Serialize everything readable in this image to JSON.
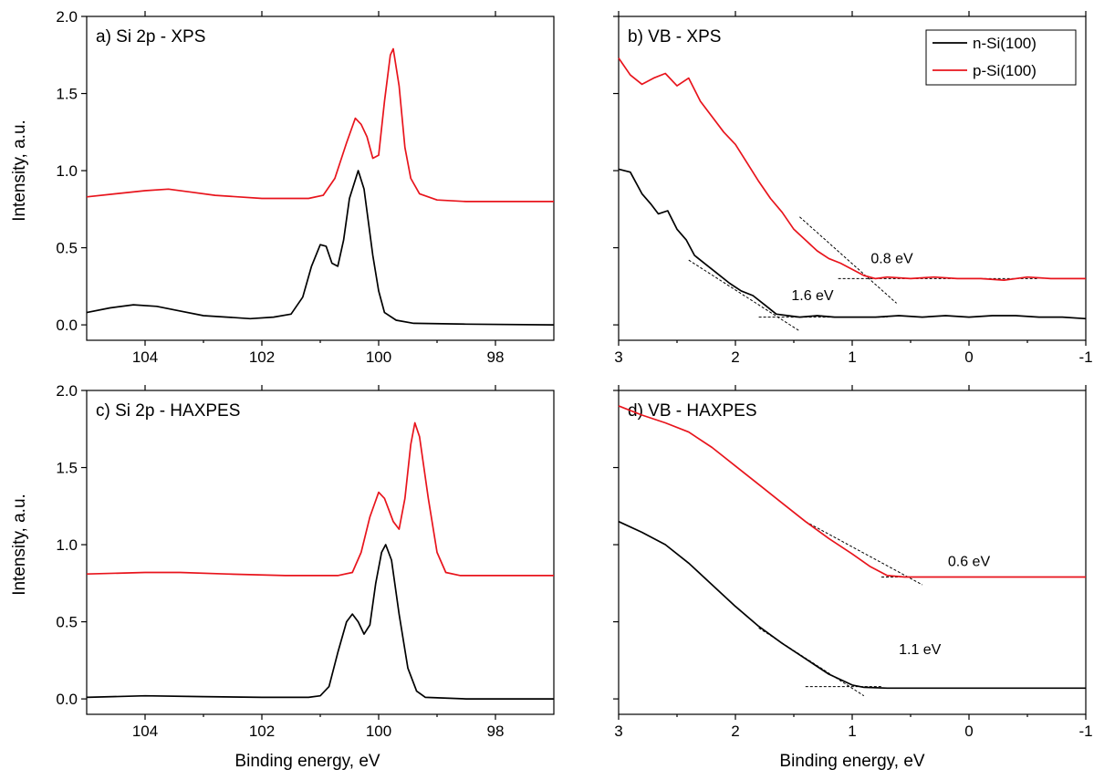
{
  "figure": {
    "y_label": "Intensity, a.u.",
    "x_label": "Binding energy, eV"
  },
  "legend": {
    "entries": [
      {
        "name": "n-Si(100)",
        "color": "#000000"
      },
      {
        "name": "p-Si(100)",
        "color": "#e8141c"
      }
    ]
  },
  "chart_data": [
    {
      "id": "a",
      "type": "line",
      "title": "a) Si 2p - XPS",
      "xlabel": "",
      "ylabel": "Intensity, a.u.",
      "xlim": [
        105,
        97
      ],
      "ylim": [
        -0.1,
        2.0
      ],
      "xticks": [
        104,
        102,
        100,
        98
      ],
      "yticks": [
        0.0,
        0.5,
        1.0,
        1.5,
        2.0
      ],
      "ytick_labels": [
        "0.0",
        "0.5",
        "1.0",
        "1.5",
        "2.0"
      ],
      "series": [
        {
          "name": "n-Si(100)",
          "color": "#000000",
          "points": [
            [
              105,
              0.08
            ],
            [
              104.6,
              0.11
            ],
            [
              104.2,
              0.13
            ],
            [
              103.8,
              0.12
            ],
            [
              103.4,
              0.09
            ],
            [
              103.0,
              0.06
            ],
            [
              102.6,
              0.05
            ],
            [
              102.2,
              0.04
            ],
            [
              101.8,
              0.05
            ],
            [
              101.5,
              0.07
            ],
            [
              101.3,
              0.18
            ],
            [
              101.15,
              0.38
            ],
            [
              101.0,
              0.52
            ],
            [
              100.9,
              0.51
            ],
            [
              100.8,
              0.4
            ],
            [
              100.7,
              0.38
            ],
            [
              100.6,
              0.55
            ],
            [
              100.5,
              0.82
            ],
            [
              100.35,
              1.0
            ],
            [
              100.25,
              0.88
            ],
            [
              100.1,
              0.45
            ],
            [
              100.0,
              0.22
            ],
            [
              99.9,
              0.08
            ],
            [
              99.7,
              0.03
            ],
            [
              99.4,
              0.01
            ],
            [
              98.5,
              0.005
            ],
            [
              97,
              0.0
            ]
          ]
        },
        {
          "name": "p-Si(100)",
          "color": "#e8141c",
          "points": [
            [
              105,
              0.83
            ],
            [
              104.5,
              0.85
            ],
            [
              104.0,
              0.87
            ],
            [
              103.6,
              0.88
            ],
            [
              103.2,
              0.86
            ],
            [
              102.8,
              0.84
            ],
            [
              102.4,
              0.83
            ],
            [
              102.0,
              0.82
            ],
            [
              101.6,
              0.82
            ],
            [
              101.2,
              0.82
            ],
            [
              100.95,
              0.84
            ],
            [
              100.75,
              0.95
            ],
            [
              100.55,
              1.18
            ],
            [
              100.4,
              1.34
            ],
            [
              100.3,
              1.3
            ],
            [
              100.2,
              1.22
            ],
            [
              100.1,
              1.08
            ],
            [
              100.0,
              1.1
            ],
            [
              99.9,
              1.45
            ],
            [
              99.8,
              1.75
            ],
            [
              99.75,
              1.79
            ],
            [
              99.65,
              1.55
            ],
            [
              99.55,
              1.15
            ],
            [
              99.45,
              0.95
            ],
            [
              99.3,
              0.85
            ],
            [
              99.0,
              0.81
            ],
            [
              98.5,
              0.8
            ],
            [
              97,
              0.8
            ]
          ]
        }
      ],
      "annotations": []
    },
    {
      "id": "b",
      "type": "line",
      "title": "b) VB - XPS",
      "xlabel": "",
      "ylabel": "",
      "xlim": [
        3,
        -1
      ],
      "ylim": [
        -0.1,
        2.0
      ],
      "xticks": [
        3,
        2,
        1,
        0,
        -1
      ],
      "yticks": [
        0.0,
        0.5,
        1.0,
        1.5,
        2.0
      ],
      "ytick_labels": [],
      "series": [
        {
          "name": "n-Si(100)",
          "color": "#000000",
          "points": [
            [
              3.0,
              1.01
            ],
            [
              2.9,
              0.99
            ],
            [
              2.8,
              0.85
            ],
            [
              2.72,
              0.78
            ],
            [
              2.66,
              0.72
            ],
            [
              2.58,
              0.74
            ],
            [
              2.5,
              0.62
            ],
            [
              2.42,
              0.55
            ],
            [
              2.35,
              0.45
            ],
            [
              2.25,
              0.39
            ],
            [
              2.15,
              0.33
            ],
            [
              2.05,
              0.27
            ],
            [
              1.95,
              0.22
            ],
            [
              1.85,
              0.19
            ],
            [
              1.75,
              0.13
            ],
            [
              1.65,
              0.07
            ],
            [
              1.55,
              0.06
            ],
            [
              1.45,
              0.05
            ],
            [
              1.3,
              0.06
            ],
            [
              1.15,
              0.05
            ],
            [
              1.0,
              0.05
            ],
            [
              0.8,
              0.05
            ],
            [
              0.6,
              0.06
            ],
            [
              0.4,
              0.05
            ],
            [
              0.2,
              0.06
            ],
            [
              0.0,
              0.05
            ],
            [
              -0.2,
              0.06
            ],
            [
              -0.4,
              0.06
            ],
            [
              -0.6,
              0.05
            ],
            [
              -0.8,
              0.05
            ],
            [
              -1.0,
              0.04
            ]
          ]
        },
        {
          "name": "p-Si(100)",
          "color": "#e8141c",
          "points": [
            [
              3.0,
              1.73
            ],
            [
              2.9,
              1.62
            ],
            [
              2.8,
              1.56
            ],
            [
              2.7,
              1.6
            ],
            [
              2.6,
              1.63
            ],
            [
              2.5,
              1.55
            ],
            [
              2.4,
              1.6
            ],
            [
              2.3,
              1.45
            ],
            [
              2.2,
              1.35
            ],
            [
              2.1,
              1.25
            ],
            [
              2.0,
              1.17
            ],
            [
              1.9,
              1.05
            ],
            [
              1.8,
              0.93
            ],
            [
              1.7,
              0.82
            ],
            [
              1.6,
              0.73
            ],
            [
              1.5,
              0.62
            ],
            [
              1.4,
              0.55
            ],
            [
              1.3,
              0.48
            ],
            [
              1.2,
              0.43
            ],
            [
              1.1,
              0.4
            ],
            [
              1.0,
              0.36
            ],
            [
              0.9,
              0.32
            ],
            [
              0.8,
              0.3
            ],
            [
              0.7,
              0.31
            ],
            [
              0.5,
              0.3
            ],
            [
              0.3,
              0.31
            ],
            [
              0.1,
              0.3
            ],
            [
              -0.1,
              0.3
            ],
            [
              -0.3,
              0.29
            ],
            [
              -0.5,
              0.31
            ],
            [
              -0.7,
              0.3
            ],
            [
              -0.9,
              0.3
            ],
            [
              -1.0,
              0.3
            ]
          ]
        }
      ],
      "annotations": [
        {
          "text": "0.8 eV",
          "x": 0.66,
          "y": 0.4
        },
        {
          "text": "1.6 eV",
          "x": 1.34,
          "y": 0.16
        }
      ],
      "guides": [
        {
          "x1": 1.45,
          "y1": 0.7,
          "x2": 0.62,
          "y2": 0.14
        },
        {
          "x1": 1.12,
          "y1": 0.3,
          "x2": -0.6,
          "y2": 0.3
        },
        {
          "x1": 2.4,
          "y1": 0.42,
          "x2": 1.45,
          "y2": -0.04
        },
        {
          "x1": 1.8,
          "y1": 0.05,
          "x2": 0.7,
          "y2": 0.05
        }
      ]
    },
    {
      "id": "c",
      "type": "line",
      "title": "c) Si 2p - HAXPES",
      "xlabel": "Binding energy, eV",
      "ylabel": "Intensity, a.u.",
      "xlim": [
        105,
        97
      ],
      "ylim": [
        -0.1,
        2.0
      ],
      "xticks": [
        104,
        102,
        100,
        98
      ],
      "yticks": [
        0.0,
        0.5,
        1.0,
        1.5,
        2.0
      ],
      "ytick_labels": [
        "0.0",
        "0.5",
        "1.0",
        "1.5",
        "2.0"
      ],
      "series": [
        {
          "name": "n-Si(100)",
          "color": "#000000",
          "points": [
            [
              105,
              0.01
            ],
            [
              104.0,
              0.02
            ],
            [
              103.0,
              0.015
            ],
            [
              102.0,
              0.01
            ],
            [
              101.2,
              0.01
            ],
            [
              101.0,
              0.02
            ],
            [
              100.85,
              0.08
            ],
            [
              100.7,
              0.3
            ],
            [
              100.55,
              0.5
            ],
            [
              100.45,
              0.55
            ],
            [
              100.35,
              0.5
            ],
            [
              100.25,
              0.42
            ],
            [
              100.15,
              0.48
            ],
            [
              100.05,
              0.75
            ],
            [
              99.95,
              0.95
            ],
            [
              99.88,
              1.0
            ],
            [
              99.78,
              0.9
            ],
            [
              99.65,
              0.55
            ],
            [
              99.5,
              0.2
            ],
            [
              99.35,
              0.05
            ],
            [
              99.2,
              0.01
            ],
            [
              98.5,
              0.0
            ],
            [
              97,
              0.0
            ]
          ]
        },
        {
          "name": "p-Si(100)",
          "color": "#e8141c",
          "points": [
            [
              105,
              0.81
            ],
            [
              104.0,
              0.82
            ],
            [
              103.4,
              0.82
            ],
            [
              102.6,
              0.81
            ],
            [
              101.6,
              0.8
            ],
            [
              100.7,
              0.8
            ],
            [
              100.45,
              0.82
            ],
            [
              100.3,
              0.95
            ],
            [
              100.15,
              1.18
            ],
            [
              100.0,
              1.34
            ],
            [
              99.9,
              1.3
            ],
            [
              99.75,
              1.15
            ],
            [
              99.65,
              1.1
            ],
            [
              99.55,
              1.3
            ],
            [
              99.45,
              1.65
            ],
            [
              99.38,
              1.79
            ],
            [
              99.3,
              1.7
            ],
            [
              99.15,
              1.3
            ],
            [
              99.0,
              0.95
            ],
            [
              98.85,
              0.82
            ],
            [
              98.6,
              0.8
            ],
            [
              97,
              0.8
            ]
          ]
        }
      ],
      "annotations": []
    },
    {
      "id": "d",
      "type": "line",
      "title": "d) VB - HAXPES",
      "xlabel": "Binding energy, eV",
      "ylabel": "",
      "xlim": [
        3,
        -1
      ],
      "ylim": [
        -0.1,
        2.0
      ],
      "xticks": [
        3,
        2,
        1,
        0,
        -1
      ],
      "yticks": [
        0.0,
        0.5,
        1.0,
        1.5,
        2.0
      ],
      "ytick_labels": [],
      "series": [
        {
          "name": "n-Si(100)",
          "color": "#000000",
          "points": [
            [
              3.0,
              1.15
            ],
            [
              2.8,
              1.08
            ],
            [
              2.6,
              1.0
            ],
            [
              2.4,
              0.88
            ],
            [
              2.2,
              0.74
            ],
            [
              2.0,
              0.6
            ],
            [
              1.8,
              0.47
            ],
            [
              1.6,
              0.36
            ],
            [
              1.4,
              0.26
            ],
            [
              1.2,
              0.16
            ],
            [
              1.0,
              0.09
            ],
            [
              0.9,
              0.075
            ],
            [
              0.7,
              0.07
            ],
            [
              0.4,
              0.07
            ],
            [
              0.0,
              0.07
            ],
            [
              -0.5,
              0.07
            ],
            [
              -1.0,
              0.07
            ]
          ]
        },
        {
          "name": "p-Si(100)",
          "color": "#e8141c",
          "points": [
            [
              3.0,
              1.9
            ],
            [
              2.8,
              1.84
            ],
            [
              2.6,
              1.79
            ],
            [
              2.4,
              1.73
            ],
            [
              2.2,
              1.63
            ],
            [
              2.0,
              1.51
            ],
            [
              1.8,
              1.39
            ],
            [
              1.6,
              1.27
            ],
            [
              1.4,
              1.15
            ],
            [
              1.2,
              1.04
            ],
            [
              1.0,
              0.94
            ],
            [
              0.85,
              0.86
            ],
            [
              0.7,
              0.8
            ],
            [
              0.55,
              0.79
            ],
            [
              0.3,
              0.79
            ],
            [
              0.0,
              0.79
            ],
            [
              -0.5,
              0.79
            ],
            [
              -1.0,
              0.79
            ]
          ]
        }
      ],
      "annotations": [
        {
          "text": "0.6 eV",
          "x": 0.0,
          "y": 0.86
        },
        {
          "text": "1.1 eV",
          "x": 0.42,
          "y": 0.29
        }
      ],
      "guides": [
        {
          "x1": 1.4,
          "y1": 1.15,
          "x2": 0.4,
          "y2": 0.74
        },
        {
          "x1": 0.75,
          "y1": 0.79,
          "x2": 0.05,
          "y2": 0.79
        },
        {
          "x1": 1.8,
          "y1": 0.46,
          "x2": 0.9,
          "y2": 0.02
        },
        {
          "x1": 1.4,
          "y1": 0.08,
          "x2": 0.75,
          "y2": 0.08
        }
      ]
    }
  ]
}
